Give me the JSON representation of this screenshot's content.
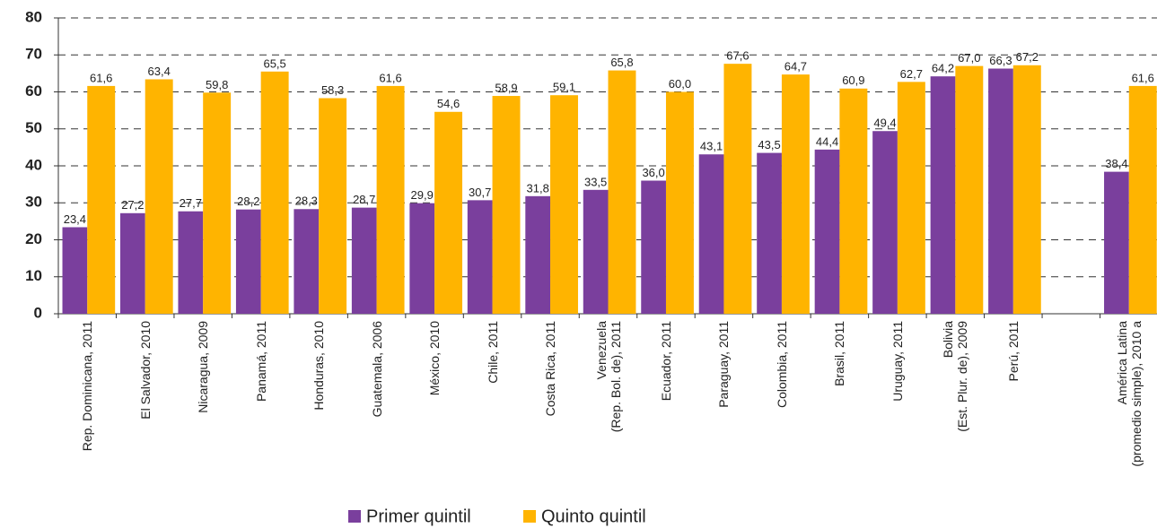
{
  "chart_data": {
    "type": "bar",
    "categories": [
      "Rep. Dominicana, 2011",
      "El Salvador, 2010",
      "Nicaragua, 2009",
      "Panamá, 2011",
      "Honduras, 2010",
      "Guatemala, 2006",
      "México, 2010",
      "Chile, 2011",
      "Costa Rica, 2011",
      "Venezuela\n(Rep. Bol. de), 2011",
      "Ecuador, 2011",
      "Paraguay, 2011",
      "Colombia, 2011",
      "Brasil, 2011",
      "Uruguay, 2011",
      "Bolivia\n(Est. Plur. de), 2009",
      "Perú, 2011",
      null,
      "América Latina\n(promedio simple), 2010 a"
    ],
    "series": [
      {
        "name": "Primer quintil",
        "color": "#7a3f9d",
        "values": [
          23.4,
          27.2,
          27.7,
          28.2,
          28.3,
          28.7,
          29.9,
          30.7,
          31.8,
          33.5,
          36.0,
          43.1,
          43.5,
          44.4,
          49.4,
          64.2,
          66.3,
          null,
          38.4
        ],
        "value_labels": [
          "23,4",
          "27,2",
          "27,7",
          "28,2",
          "28,3",
          "28,7",
          "29,9",
          "30,7",
          "31,8",
          "33,5",
          "36,0",
          "43,1",
          "43,5",
          "44,4",
          "49,4",
          "64,2",
          "66,3",
          null,
          "38,4"
        ]
      },
      {
        "name": "Quinto quintil",
        "color": "#ffb400",
        "values": [
          61.6,
          63.4,
          59.8,
          65.5,
          58.3,
          61.6,
          54.6,
          58.9,
          59.1,
          65.8,
          60.0,
          67.6,
          64.7,
          60.9,
          62.7,
          67.0,
          67.2,
          null,
          61.6
        ],
        "value_labels": [
          "61,6",
          "63,4",
          "59,8",
          "65,5",
          "58,3",
          "61,6",
          "54,6",
          "58,9",
          "59,1",
          "65,8",
          "60,0",
          "67,6",
          "64,7",
          "60,9",
          "62,7",
          "67,0",
          "67,2",
          null,
          "61,6"
        ]
      }
    ],
    "ylim": [
      0,
      80
    ],
    "yticks": [
      0,
      10,
      20,
      30,
      40,
      50,
      60,
      70,
      80
    ],
    "grid": true,
    "legend": "bottom"
  }
}
